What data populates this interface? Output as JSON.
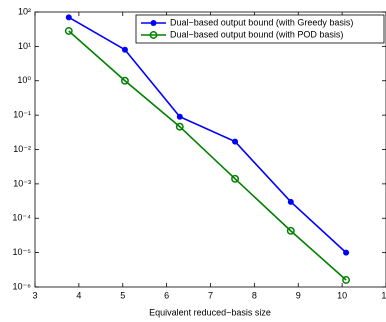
{
  "chart_data": {
    "type": "line",
    "xlabel": "Equivalent reduced−basis size",
    "xlim": [
      3,
      11
    ],
    "xticks": [
      3,
      4,
      5,
      6,
      7,
      8,
      9,
      10,
      11
    ],
    "ylim": [
      1e-06,
      100
    ],
    "log_y": true,
    "yticks": [
      {
        "value": 1e-06,
        "label": "10⁻⁶"
      },
      {
        "value": 1e-05,
        "label": "10⁻⁵"
      },
      {
        "value": 0.0001,
        "label": "10⁻⁴"
      },
      {
        "value": 0.001,
        "label": "10⁻³"
      },
      {
        "value": 0.01,
        "label": "10⁻²"
      },
      {
        "value": 0.1,
        "label": "10⁻¹"
      },
      {
        "value": 1,
        "label": "10⁰"
      },
      {
        "value": 10,
        "label": "10¹"
      },
      {
        "value": 100,
        "label": "10²"
      }
    ],
    "legend": "upper right",
    "series": [
      {
        "name": "Dual−based output bound (with Greedy basis)",
        "color": "#0000ff",
        "marker": "dot",
        "x": [
          3.77,
          5.05,
          6.3,
          7.56,
          8.83,
          10.09
        ],
        "values": [
          70,
          8,
          0.09,
          0.017,
          0.0003,
          1e-05
        ]
      },
      {
        "name": "Dual−based output bound (with POD basis)",
        "color": "#008000",
        "marker": "circle",
        "x": [
          3.77,
          5.05,
          6.3,
          7.56,
          8.83,
          10.09
        ],
        "values": [
          28,
          1,
          0.046,
          0.0014,
          4.3e-05,
          1.6e-06
        ]
      }
    ]
  }
}
